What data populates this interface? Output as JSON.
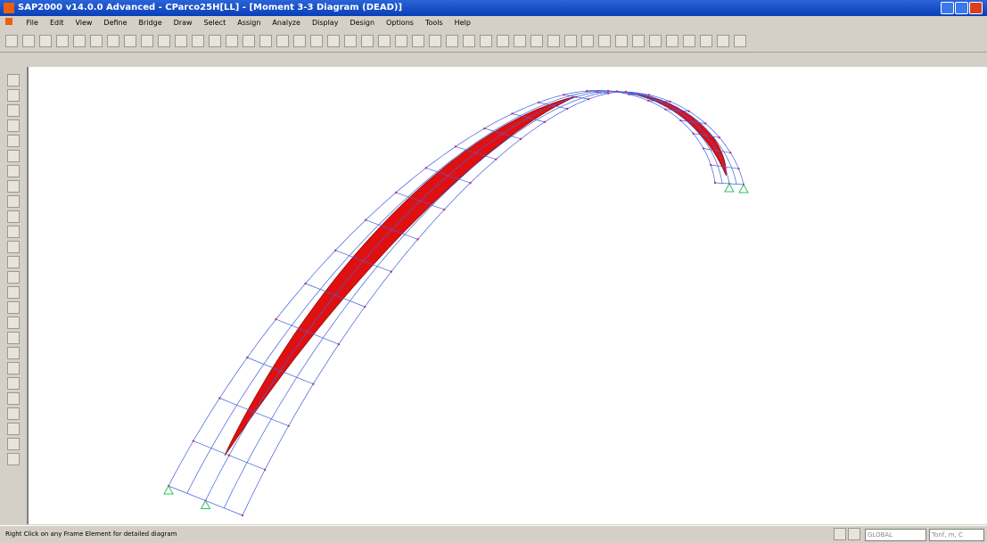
{
  "window": {
    "title": "SAP2000 v14.0.0 Advanced - CParco25H[LL] - [Moment 3-3 Diagram (DEAD)]"
  },
  "menu": [
    "File",
    "Edit",
    "View",
    "Define",
    "Bridge",
    "Draw",
    "Select",
    "Assign",
    "Analyze",
    "Display",
    "Design",
    "Options",
    "Tools",
    "Help"
  ],
  "status_bar": {
    "message": "Right Click on any Frame Element for detailed diagram",
    "coordinate_system": "GLOBAL",
    "units": "Tonf, m, C"
  }
}
